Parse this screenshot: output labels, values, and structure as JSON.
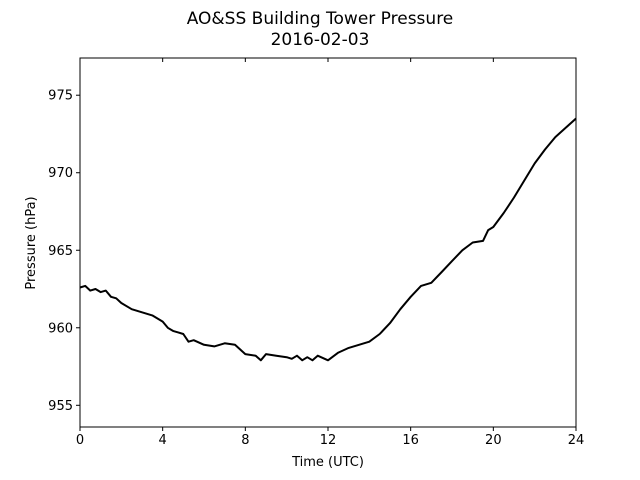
{
  "chart_data": {
    "type": "line",
    "title": "AO&SS Building Tower Pressure",
    "subtitle": "2016-02-03",
    "xlabel": "Time (UTC)",
    "ylabel": "Pressure (hPa)",
    "xlim": [
      0,
      24
    ],
    "ylim": [
      953.6,
      977.4
    ],
    "xticks": [
      0,
      4,
      8,
      12,
      16,
      20,
      24
    ],
    "yticks": [
      955,
      960,
      965,
      970,
      975
    ],
    "grid": false,
    "series": [
      {
        "color": "#000000",
        "x": [
          0,
          0.25,
          0.5,
          0.75,
          1.0,
          1.25,
          1.5,
          1.75,
          2.0,
          2.5,
          3.0,
          3.5,
          4.0,
          4.25,
          4.5,
          4.75,
          5.0,
          5.25,
          5.5,
          6.0,
          6.5,
          7.0,
          7.5,
          8.0,
          8.5,
          8.75,
          9.0,
          9.5,
          10.0,
          10.25,
          10.5,
          10.75,
          11.0,
          11.25,
          11.5,
          12.0,
          12.5,
          13.0,
          13.5,
          14.0,
          14.5,
          15.0,
          15.5,
          16.0,
          16.5,
          17.0,
          17.5,
          18.0,
          18.5,
          19.0,
          19.5,
          19.75,
          20.0,
          20.5,
          21.0,
          21.5,
          22.0,
          22.5,
          23.0,
          23.5,
          24.0
        ],
        "y": [
          962.6,
          962.7,
          962.4,
          962.5,
          962.3,
          962.4,
          962.0,
          961.9,
          961.6,
          961.2,
          961.0,
          960.8,
          960.4,
          960.0,
          959.8,
          959.7,
          959.6,
          959.1,
          959.2,
          958.9,
          958.8,
          959.0,
          958.9,
          958.3,
          958.2,
          957.9,
          958.3,
          958.2,
          958.1,
          958.0,
          958.2,
          957.9,
          958.1,
          957.9,
          958.2,
          957.9,
          958.4,
          958.7,
          958.9,
          959.1,
          959.6,
          960.3,
          961.2,
          962.0,
          962.7,
          962.9,
          963.6,
          964.3,
          965.0,
          965.5,
          965.6,
          966.3,
          966.5,
          967.4,
          968.4,
          969.5,
          970.6,
          971.5,
          972.3,
          972.9,
          973.5
        ]
      }
    ]
  }
}
